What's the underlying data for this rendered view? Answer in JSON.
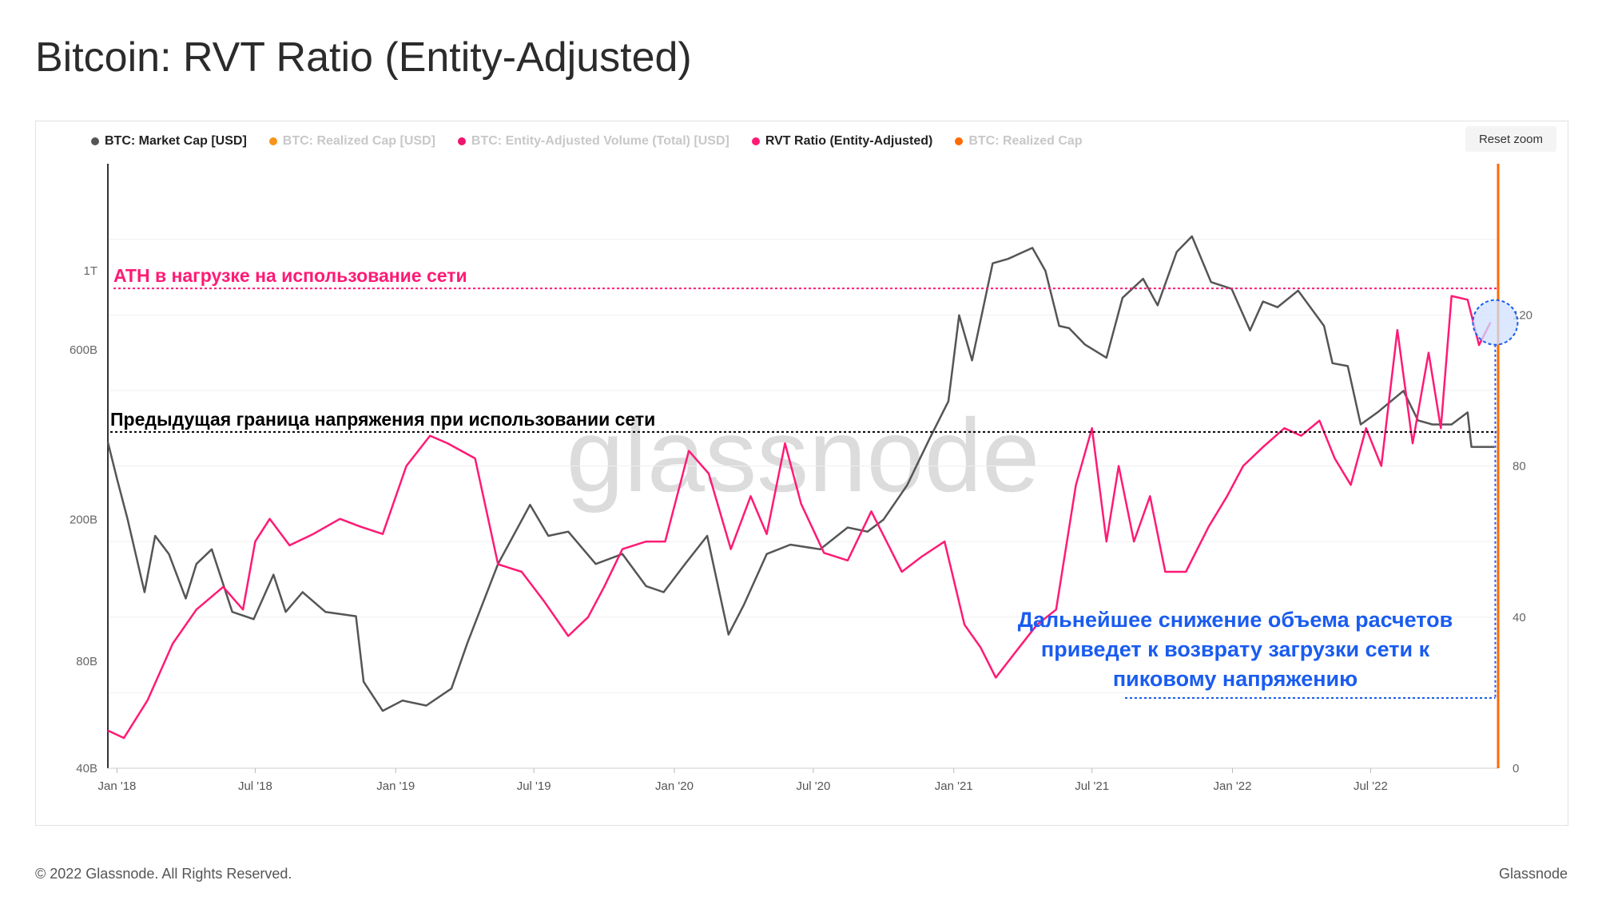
{
  "title": "Bitcoin: RVT Ratio (Entity-Adjusted)",
  "reset_zoom_label": "Reset zoom",
  "footer": {
    "copyright": "© 2022 Glassnode. All Rights Reserved.",
    "brand": "Glassnode"
  },
  "watermark": "glassnode",
  "legend": [
    {
      "label": "BTC: Market Cap [USD]",
      "color": "#555555",
      "active": true
    },
    {
      "label": "BTC: Realized Cap [USD]",
      "color": "#f7931a",
      "active": false
    },
    {
      "label": "BTC: Entity-Adjusted Volume (Total) [USD]",
      "color": "#f0146e",
      "active": false
    },
    {
      "label": "RVT Ratio (Entity-Adjusted)",
      "color": "#ff1a75",
      "active": true
    },
    {
      "label": "BTC: Realized Cap",
      "color": "#ff6a00",
      "active": false
    }
  ],
  "colors": {
    "market_cap": "#555555",
    "rvt": "#ff1a75",
    "ath_line": "#ff1a75",
    "blue": "#1a5cf0",
    "realized_cap": "#ff6a00"
  },
  "chart_data": {
    "type": "line",
    "x_tick_labels": [
      "Jan '18",
      "Jul '18",
      "Jan '19",
      "Jul '19",
      "Jan '20",
      "Jul '20",
      "Jan '21",
      "Jul '21",
      "Jan '22",
      "Jul '22"
    ],
    "y_left": {
      "scale": "log",
      "ticks": [
        "40B",
        "80B",
        "200B",
        "600B",
        "1T"
      ],
      "range": [
        40,
        2000
      ]
    },
    "y_right": {
      "ticks": [
        "0",
        "40",
        "80",
        "120"
      ],
      "range": [
        0,
        160
      ]
    },
    "x_range": [
      "2017-12-20",
      "2022-12-15"
    ],
    "series": [
      {
        "name": "BTC: Market Cap [USD]",
        "axis": "left",
        "unit": "billion USD",
        "x": [
          "2017-12-20",
          "2018-01-01",
          "2018-01-15",
          "2018-02-06",
          "2018-02-20",
          "2018-03-10",
          "2018-04-01",
          "2018-04-15",
          "2018-05-05",
          "2018-06-01",
          "2018-06-29",
          "2018-07-25",
          "2018-08-10",
          "2018-09-01",
          "2018-10-01",
          "2018-11-10",
          "2018-11-20",
          "2018-12-15",
          "2019-01-10",
          "2019-02-10",
          "2019-03-15",
          "2019-04-05",
          "2019-05-15",
          "2019-06-26",
          "2019-07-20",
          "2019-08-15",
          "2019-09-20",
          "2019-10-25",
          "2019-11-25",
          "2019-12-18",
          "2020-01-15",
          "2020-02-13",
          "2020-03-12",
          "2020-04-01",
          "2020-05-01",
          "2020-06-01",
          "2020-07-10",
          "2020-08-15",
          "2020-09-10",
          "2020-10-01",
          "2020-11-01",
          "2020-12-01",
          "2020-12-25",
          "2021-01-08",
          "2021-01-25",
          "2021-02-21",
          "2021-03-13",
          "2021-04-14",
          "2021-05-01",
          "2021-05-19",
          "2021-06-01",
          "2021-06-22",
          "2021-07-20",
          "2021-08-10",
          "2021-09-06",
          "2021-09-25",
          "2021-10-20",
          "2021-11-09",
          "2021-12-04",
          "2021-12-31",
          "2022-01-24",
          "2022-02-10",
          "2022-03-01",
          "2022-03-28",
          "2022-05-01",
          "2022-05-12",
          "2022-06-01",
          "2022-06-18",
          "2022-07-10",
          "2022-08-13",
          "2022-09-01",
          "2022-09-20",
          "2022-10-15",
          "2022-11-05",
          "2022-11-10",
          "2022-11-25",
          "2022-12-10"
        ],
        "y": [
          330,
          260,
          200,
          125,
          180,
          160,
          120,
          150,
          165,
          110,
          105,
          140,
          110,
          125,
          110,
          107,
          70,
          58,
          62,
          60,
          67,
          90,
          150,
          220,
          180,
          185,
          150,
          160,
          130,
          125,
          150,
          180,
          95,
          115,
          160,
          170,
          165,
          190,
          185,
          200,
          250,
          340,
          430,
          750,
          560,
          1050,
          1080,
          1160,
          1000,
          700,
          690,
          620,
          570,
          840,
          950,
          800,
          1130,
          1250,
          930,
          890,
          680,
          820,
          790,
          880,
          700,
          550,
          540,
          370,
          400,
          460,
          380,
          370,
          370,
          400,
          320,
          320,
          320
        ]
      },
      {
        "name": "RVT Ratio (Entity-Adjusted)",
        "axis": "right",
        "x": [
          "2017-12-20",
          "2018-01-10",
          "2018-02-10",
          "2018-03-15",
          "2018-04-15",
          "2018-05-20",
          "2018-06-15",
          "2018-07-01",
          "2018-07-20",
          "2018-08-15",
          "2018-09-15",
          "2018-10-20",
          "2018-11-15",
          "2018-12-15",
          "2019-01-15",
          "2019-02-15",
          "2019-03-10",
          "2019-04-15",
          "2019-05-15",
          "2019-06-15",
          "2019-07-15",
          "2019-08-15",
          "2019-09-10",
          "2019-10-01",
          "2019-10-25",
          "2019-11-25",
          "2019-12-20",
          "2020-01-20",
          "2020-02-15",
          "2020-03-15",
          "2020-04-10",
          "2020-05-01",
          "2020-05-25",
          "2020-06-15",
          "2020-07-15",
          "2020-08-15",
          "2020-09-15",
          "2020-10-05",
          "2020-10-25",
          "2020-11-20",
          "2020-12-20",
          "2021-01-15",
          "2021-02-05",
          "2021-02-25",
          "2021-03-20",
          "2021-04-20",
          "2021-05-15",
          "2021-06-10",
          "2021-07-01",
          "2021-07-20",
          "2021-08-05",
          "2021-08-25",
          "2021-09-15",
          "2021-10-05",
          "2021-11-01",
          "2021-12-01",
          "2021-12-25",
          "2022-01-15",
          "2022-02-10",
          "2022-03-10",
          "2022-04-01",
          "2022-04-25",
          "2022-05-15",
          "2022-06-05",
          "2022-06-25",
          "2022-07-15",
          "2022-08-05",
          "2022-08-25",
          "2022-09-15",
          "2022-10-01",
          "2022-10-15",
          "2022-11-05",
          "2022-11-20",
          "2022-12-05"
        ],
        "y": [
          10,
          8,
          18,
          33,
          42,
          48,
          42,
          60,
          66,
          59,
          62,
          66,
          64,
          62,
          80,
          88,
          86,
          82,
          54,
          52,
          44,
          35,
          40,
          48,
          58,
          60,
          60,
          84,
          78,
          58,
          72,
          62,
          86,
          70,
          57,
          55,
          68,
          60,
          52,
          56,
          60,
          38,
          32,
          24,
          30,
          38,
          42,
          75,
          90,
          60,
          80,
          60,
          72,
          52,
          52,
          64,
          72,
          80,
          85,
          90,
          88,
          92,
          82,
          75,
          90,
          80,
          116,
          86,
          110,
          90,
          125,
          124,
          112,
          118
        ]
      }
    ],
    "annotations": [
      {
        "text": "ATH в нагрузке на использование сети",
        "color": "#ff1a75",
        "value": 127,
        "axis": "right",
        "style": "dotted-line"
      },
      {
        "text": "Предыдущая граница напряжения при использовании сети",
        "color": "#000000",
        "value": 89,
        "axis": "right",
        "style": "dotted-line"
      },
      {
        "text": [
          "Дальнейшее снижение объема расчетов",
          "приведет к возврату загрузки сети к",
          "пиковому напряжению"
        ],
        "color": "#1a5cf0"
      }
    ]
  }
}
